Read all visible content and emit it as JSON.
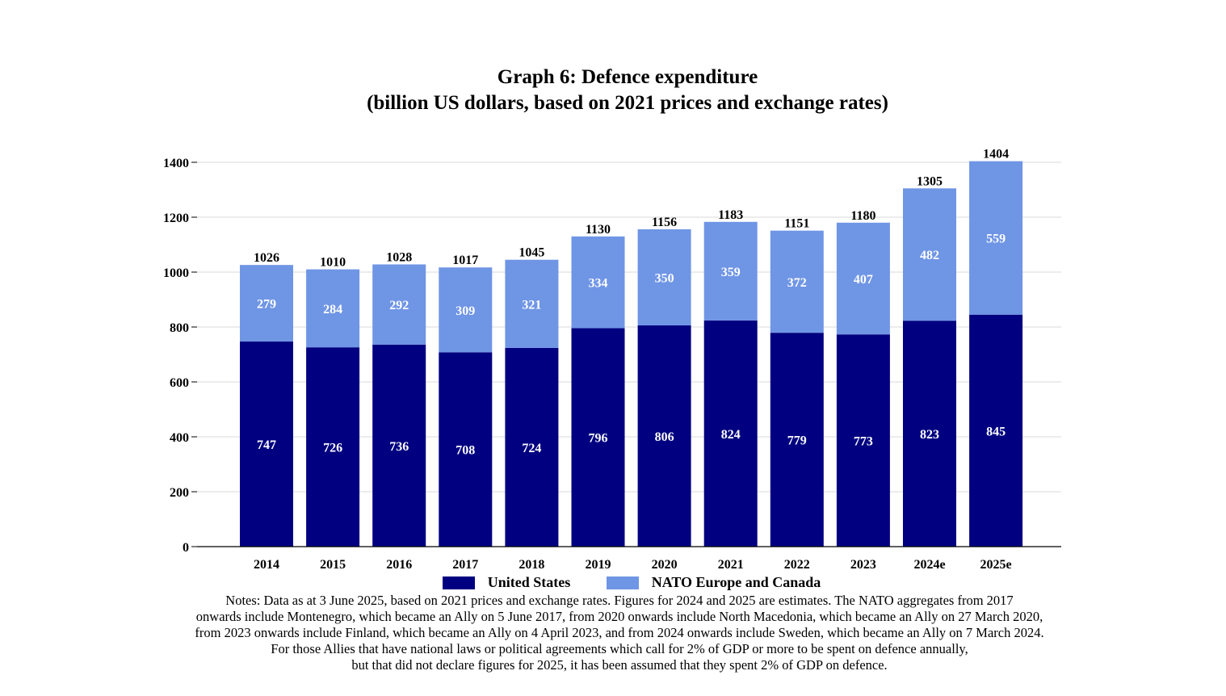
{
  "title_lines": [
    "Graph 6: Defence expenditure",
    "(billion US dollars, based on 2021 prices and exchange rates)"
  ],
  "colors": {
    "us": "#000080",
    "europe": "#6F95E5",
    "grid": "#d9d9d9"
  },
  "chart_data": {
    "type": "bar",
    "stacked": true,
    "title": "Graph 6: Defence expenditure (billion US dollars, based on 2021 prices and exchange rates)",
    "categories": [
      "2014",
      "2015",
      "2016",
      "2017",
      "2018",
      "2019",
      "2020",
      "2021",
      "2022",
      "2023",
      "2024e",
      "2025e"
    ],
    "series": [
      {
        "name": "United States",
        "values": [
          747,
          726,
          736,
          708,
          724,
          796,
          806,
          824,
          779,
          773,
          823,
          845
        ]
      },
      {
        "name": "NATO Europe and Canada",
        "values": [
          279,
          284,
          292,
          309,
          321,
          334,
          350,
          359,
          372,
          407,
          482,
          559
        ]
      }
    ],
    "totals": [
      1026,
      1010,
      1028,
      1017,
      1045,
      1130,
      1156,
      1183,
      1151,
      1180,
      1305,
      1404
    ],
    "ylim": [
      0,
      1400
    ],
    "yticks": [
      0,
      200,
      400,
      600,
      800,
      1000,
      1200,
      1400
    ],
    "grid": true,
    "legend": "bottom"
  },
  "notes": [
    "Notes: Data as at 3 June 2025, based on 2021 prices and exchange rates. Figures for 2024 and 2025 are estimates. The NATO aggregates from 2017",
    "onwards include Montenegro, which became an Ally on 5 June 2017, from 2020 onwards include North Macedonia, which became an Ally on 27 March 2020,",
    "from 2023 onwards include Finland, which became an Ally on 4 April 2023, and from 2024 onwards include Sweden, which became an Ally on 7 March 2024.",
    "For those Allies that have national laws or political agreements which call for 2% of GDP or more to be spent on defence annually,",
    "but that did not declare figures for 2025, it has been assumed that they spent 2% of GDP on defence."
  ]
}
